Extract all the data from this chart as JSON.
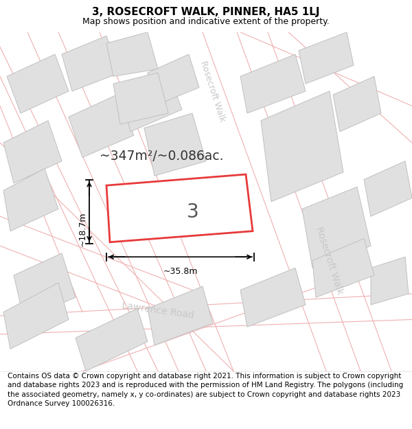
{
  "title": "3, ROSECROFT WALK, PINNER, HA5 1LJ",
  "subtitle": "Map shows position and indicative extent of the property.",
  "footer": "Contains OS data © Crown copyright and database right 2021. This information is subject to Crown copyright and database rights 2023 and is reproduced with the permission of HM Land Registry. The polygons (including the associated geometry, namely x, y co-ordinates) are subject to Crown copyright and database rights 2023 Ordnance Survey 100026316.",
  "map_bg": "#f5f5f5",
  "building_fill": "#e0e0e0",
  "building_edge": "#c0c0c0",
  "highlight_fill": "#ffffff",
  "highlight_edge": "#e8393a",
  "road_fill": "#ffffff",
  "road_line_color": "#f0b0b0",
  "road_label_color": "#c8c8c8",
  "plot_label": "3",
  "area_text": "~347m²/~0.086ac.",
  "dim_width": "~35.8m",
  "dim_height": "~18.7m",
  "title_fontsize": 11,
  "subtitle_fontsize": 9,
  "footer_fontsize": 7.5
}
